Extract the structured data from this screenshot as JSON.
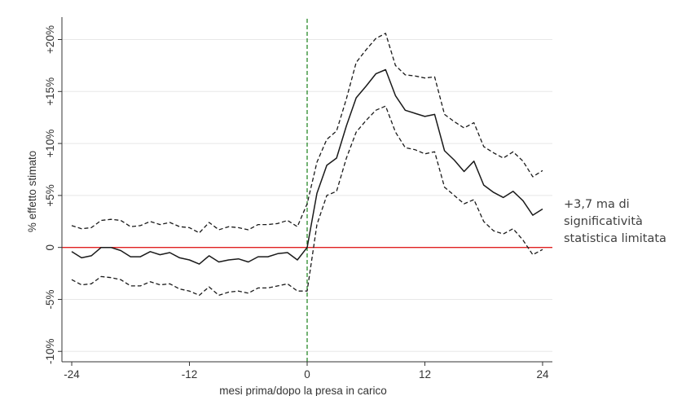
{
  "chart_data": {
    "type": "line",
    "title": "",
    "xlabel": "mesi prima/dopo la presa in carico",
    "ylabel": "% effetto stimato",
    "xlim": [
      -25,
      25
    ],
    "ylim": [
      -11,
      22
    ],
    "x_ticks": [
      -24,
      -12,
      0,
      12,
      24
    ],
    "x_tick_labels": [
      "-24",
      "-12",
      "0",
      "12",
      "24"
    ],
    "y_ticks": [
      -10,
      -5,
      0,
      5,
      10,
      15,
      20
    ],
    "y_tick_labels": [
      "-10%",
      "-5%",
      "0",
      "+5%",
      "+10%",
      "+15%",
      "+20%"
    ],
    "grid": "horizontal",
    "legend": "none",
    "x": [
      -24,
      -23,
      -22,
      -21,
      -20,
      -19,
      -18,
      -17,
      -16,
      -15,
      -14,
      -13,
      -12,
      -11,
      -10,
      -9,
      -8,
      -7,
      -6,
      -5,
      -4,
      -3,
      -2,
      -1,
      0,
      1,
      2,
      3,
      4,
      5,
      6,
      7,
      8,
      9,
      10,
      11,
      12,
      13,
      14,
      15,
      16,
      17,
      18,
      19,
      20,
      21,
      22,
      23,
      24
    ],
    "series": [
      {
        "role": "estimate",
        "style": "solid",
        "values": [
          -0.4,
          -1.0,
          -0.8,
          0.0,
          0.0,
          -0.3,
          -0.9,
          -0.9,
          -0.4,
          -0.7,
          -0.5,
          -1.0,
          -1.2,
          -1.6,
          -0.8,
          -1.4,
          -1.2,
          -1.1,
          -1.4,
          -0.9,
          -0.9,
          -0.6,
          -0.5,
          -1.2,
          0.0,
          5.2,
          7.9,
          8.6,
          11.7,
          14.4,
          15.5,
          16.7,
          17.1,
          14.6,
          13.2,
          12.9,
          12.6,
          12.8,
          9.3,
          8.4,
          7.3,
          8.3,
          6.0,
          5.3,
          4.8,
          5.4,
          4.5,
          3.1,
          3.7
        ]
      },
      {
        "role": "upper_ci",
        "style": "dashed",
        "values": [
          2.1,
          1.8,
          1.9,
          2.6,
          2.7,
          2.6,
          2.0,
          2.1,
          2.5,
          2.2,
          2.4,
          2.0,
          1.9,
          1.4,
          2.4,
          1.7,
          2.0,
          1.9,
          1.7,
          2.2,
          2.2,
          2.3,
          2.6,
          2.0,
          4.2,
          8.2,
          10.4,
          11.2,
          14.3,
          17.8,
          19.0,
          20.1,
          20.6,
          17.5,
          16.6,
          16.5,
          16.3,
          16.4,
          12.8,
          12.1,
          11.5,
          12.0,
          9.7,
          9.1,
          8.6,
          9.2,
          8.3,
          6.8,
          7.4
        ]
      },
      {
        "role": "lower_ci",
        "style": "dashed",
        "values": [
          -3.1,
          -3.6,
          -3.5,
          -2.8,
          -2.9,
          -3.1,
          -3.7,
          -3.7,
          -3.3,
          -3.6,
          -3.5,
          -4.0,
          -4.2,
          -4.6,
          -3.8,
          -4.6,
          -4.3,
          -4.2,
          -4.4,
          -3.9,
          -3.9,
          -3.7,
          -3.5,
          -4.2,
          -4.2,
          2.2,
          5.0,
          5.4,
          8.6,
          11.1,
          12.2,
          13.2,
          13.6,
          11.1,
          9.6,
          9.4,
          9.0,
          9.2,
          5.8,
          5.0,
          4.2,
          4.6,
          2.5,
          1.6,
          1.3,
          1.8,
          0.7,
          -0.7,
          -0.2
        ]
      }
    ],
    "reference_lines": [
      {
        "axis": "y",
        "value": 0,
        "color": "#e02020",
        "style": "solid"
      },
      {
        "axis": "x",
        "value": 0,
        "color": "#2a8a2a",
        "style": "dashed"
      }
    ]
  },
  "annotation": {
    "lines": [
      "+3,7 ma di",
      "significatività",
      "statistica limitata"
    ]
  },
  "colors": {
    "series": "#1a1a1a",
    "grid": "#e8e8e8",
    "axis": "#333333",
    "annotation": "#404040"
  }
}
